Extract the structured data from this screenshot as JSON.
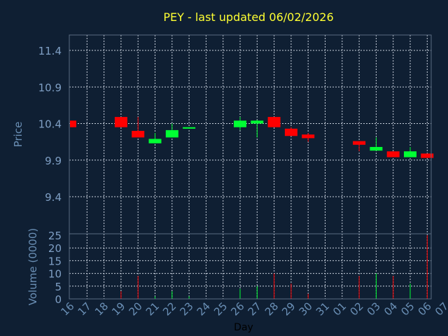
{
  "chart_data": {
    "type": "candlestick",
    "title": "PEY - last updated 06/02/2026",
    "xlabel": "Day",
    "ylabel_price": "Price",
    "ylabel_volume": "Volume (0000)",
    "x_ticks": [
      "16",
      "17",
      "18",
      "19",
      "20",
      "21",
      "22",
      "23",
      "24",
      "25",
      "26",
      "27",
      "28",
      "29",
      "30",
      "31",
      "01",
      "02",
      "03",
      "04",
      "05",
      "06",
      "07"
    ],
    "price_ticks": [
      "11.4",
      "10.9",
      "10.4",
      "9.9",
      "9.4"
    ],
    "price_tick_values": [
      11.4,
      10.9,
      10.4,
      9.9,
      9.4
    ],
    "price_ylim": [
      9.0,
      11.6
    ],
    "volume_ticks": [
      "25",
      "20",
      "15",
      "10",
      "5",
      "0"
    ],
    "volume_tick_values": [
      25,
      20,
      15,
      10,
      5,
      0
    ],
    "volume_ylim": [
      0,
      25
    ],
    "grid": true,
    "up_color": "#00ff33",
    "down_color": "#ff0000",
    "candles": [
      {
        "day": 16,
        "open": 10.44,
        "close": 10.35,
        "high": 10.44,
        "low": 10.35,
        "volume": 0
      },
      {
        "day": 19,
        "open": 10.49,
        "close": 10.35,
        "high": 10.49,
        "low": 10.35,
        "volume": 3
      },
      {
        "day": 20,
        "open": 10.3,
        "close": 10.21,
        "high": 10.49,
        "low": 10.21,
        "volume": 9
      },
      {
        "day": 21,
        "open": 10.13,
        "close": 10.19,
        "high": 10.27,
        "low": 10.13,
        "volume": 1
      },
      {
        "day": 22,
        "open": 10.21,
        "close": 10.31,
        "high": 10.4,
        "low": 10.21,
        "volume": 3
      },
      {
        "day": 23,
        "open": 10.33,
        "close": 10.35,
        "high": 10.35,
        "low": 10.33,
        "volume": 1
      },
      {
        "day": 26,
        "open": 10.35,
        "close": 10.44,
        "high": 10.49,
        "low": 10.31,
        "volume": 4
      },
      {
        "day": 27,
        "open": 10.4,
        "close": 10.44,
        "high": 10.45,
        "low": 10.21,
        "volume": 5
      },
      {
        "day": 28,
        "open": 10.49,
        "close": 10.35,
        "high": 10.49,
        "low": 10.35,
        "volume": 10
      },
      {
        "day": 29,
        "open": 10.33,
        "close": 10.23,
        "high": 10.35,
        "low": 10.23,
        "volume": 6
      },
      {
        "day": 30,
        "open": 10.25,
        "close": 10.2,
        "high": 10.27,
        "low": 10.15,
        "volume": 2
      },
      {
        "day": 2,
        "open": 10.16,
        "close": 10.11,
        "high": 10.16,
        "low": 10.02,
        "volume": 9
      },
      {
        "day": 3,
        "open": 10.03,
        "close": 10.08,
        "high": 10.21,
        "low": 10.03,
        "volume": 10
      },
      {
        "day": 4,
        "open": 10.02,
        "close": 9.94,
        "high": 10.02,
        "low": 9.94,
        "volume": 9
      },
      {
        "day": 5,
        "open": 9.94,
        "close": 10.02,
        "high": 10.08,
        "low": 9.94,
        "volume": 6
      },
      {
        "day": 6,
        "open": 9.99,
        "close": 9.93,
        "high": 9.99,
        "low": 9.93,
        "volume": 25
      }
    ]
  }
}
